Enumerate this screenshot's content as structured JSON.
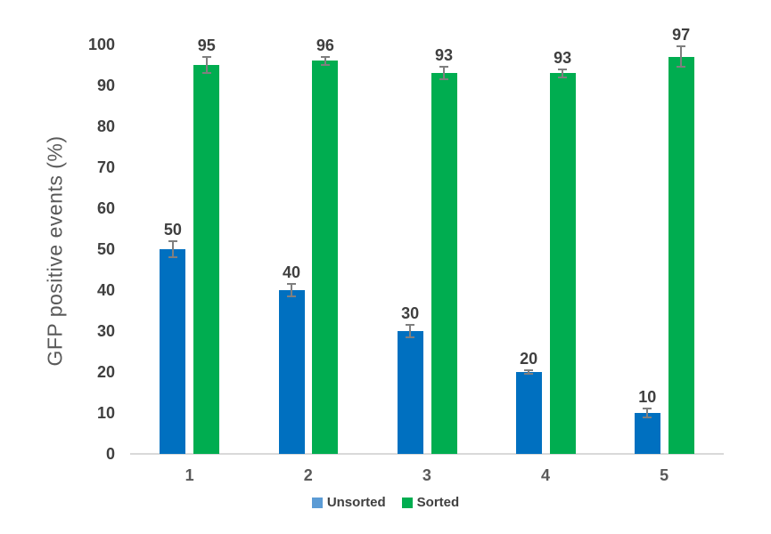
{
  "chart_data": {
    "type": "bar",
    "title": "",
    "xlabel": "",
    "ylabel": "GFP positive events  (%)",
    "categories": [
      "1",
      "2",
      "3",
      "4",
      "5"
    ],
    "series": [
      {
        "name": "Unsorted",
        "color": "#0070C0",
        "legend_color": "#5B9BD5",
        "values": [
          50,
          40,
          30,
          20,
          10
        ],
        "errors": [
          2,
          1.5,
          1.5,
          0.5,
          1
        ]
      },
      {
        "name": "Sorted",
        "color": "#00AD50",
        "legend_color": "#00AD50",
        "values": [
          95,
          96,
          93,
          93,
          97
        ],
        "errors": [
          2,
          1,
          1.5,
          1,
          2.5
        ]
      }
    ],
    "data_labels": [
      [
        "50",
        "40",
        "30",
        "20",
        "10"
      ],
      [
        "95",
        "96",
        "93",
        "93",
        "97"
      ]
    ],
    "y_ticks": [
      "0",
      "10",
      "20",
      "30",
      "40",
      "50",
      "60",
      "70",
      "80",
      "90",
      "100"
    ],
    "ylim": [
      0,
      100
    ],
    "ytick_step": 10,
    "grid": false,
    "legend_position": "bottom",
    "colors": {
      "y_tick_label": "#404040",
      "x_tick_label": "#595959",
      "data_label": "#3f3f3f",
      "axis_title": "#595959",
      "axis_line": "#d9d9d9",
      "error_bar": "#7f7f7f",
      "background": "#ffffff"
    }
  }
}
